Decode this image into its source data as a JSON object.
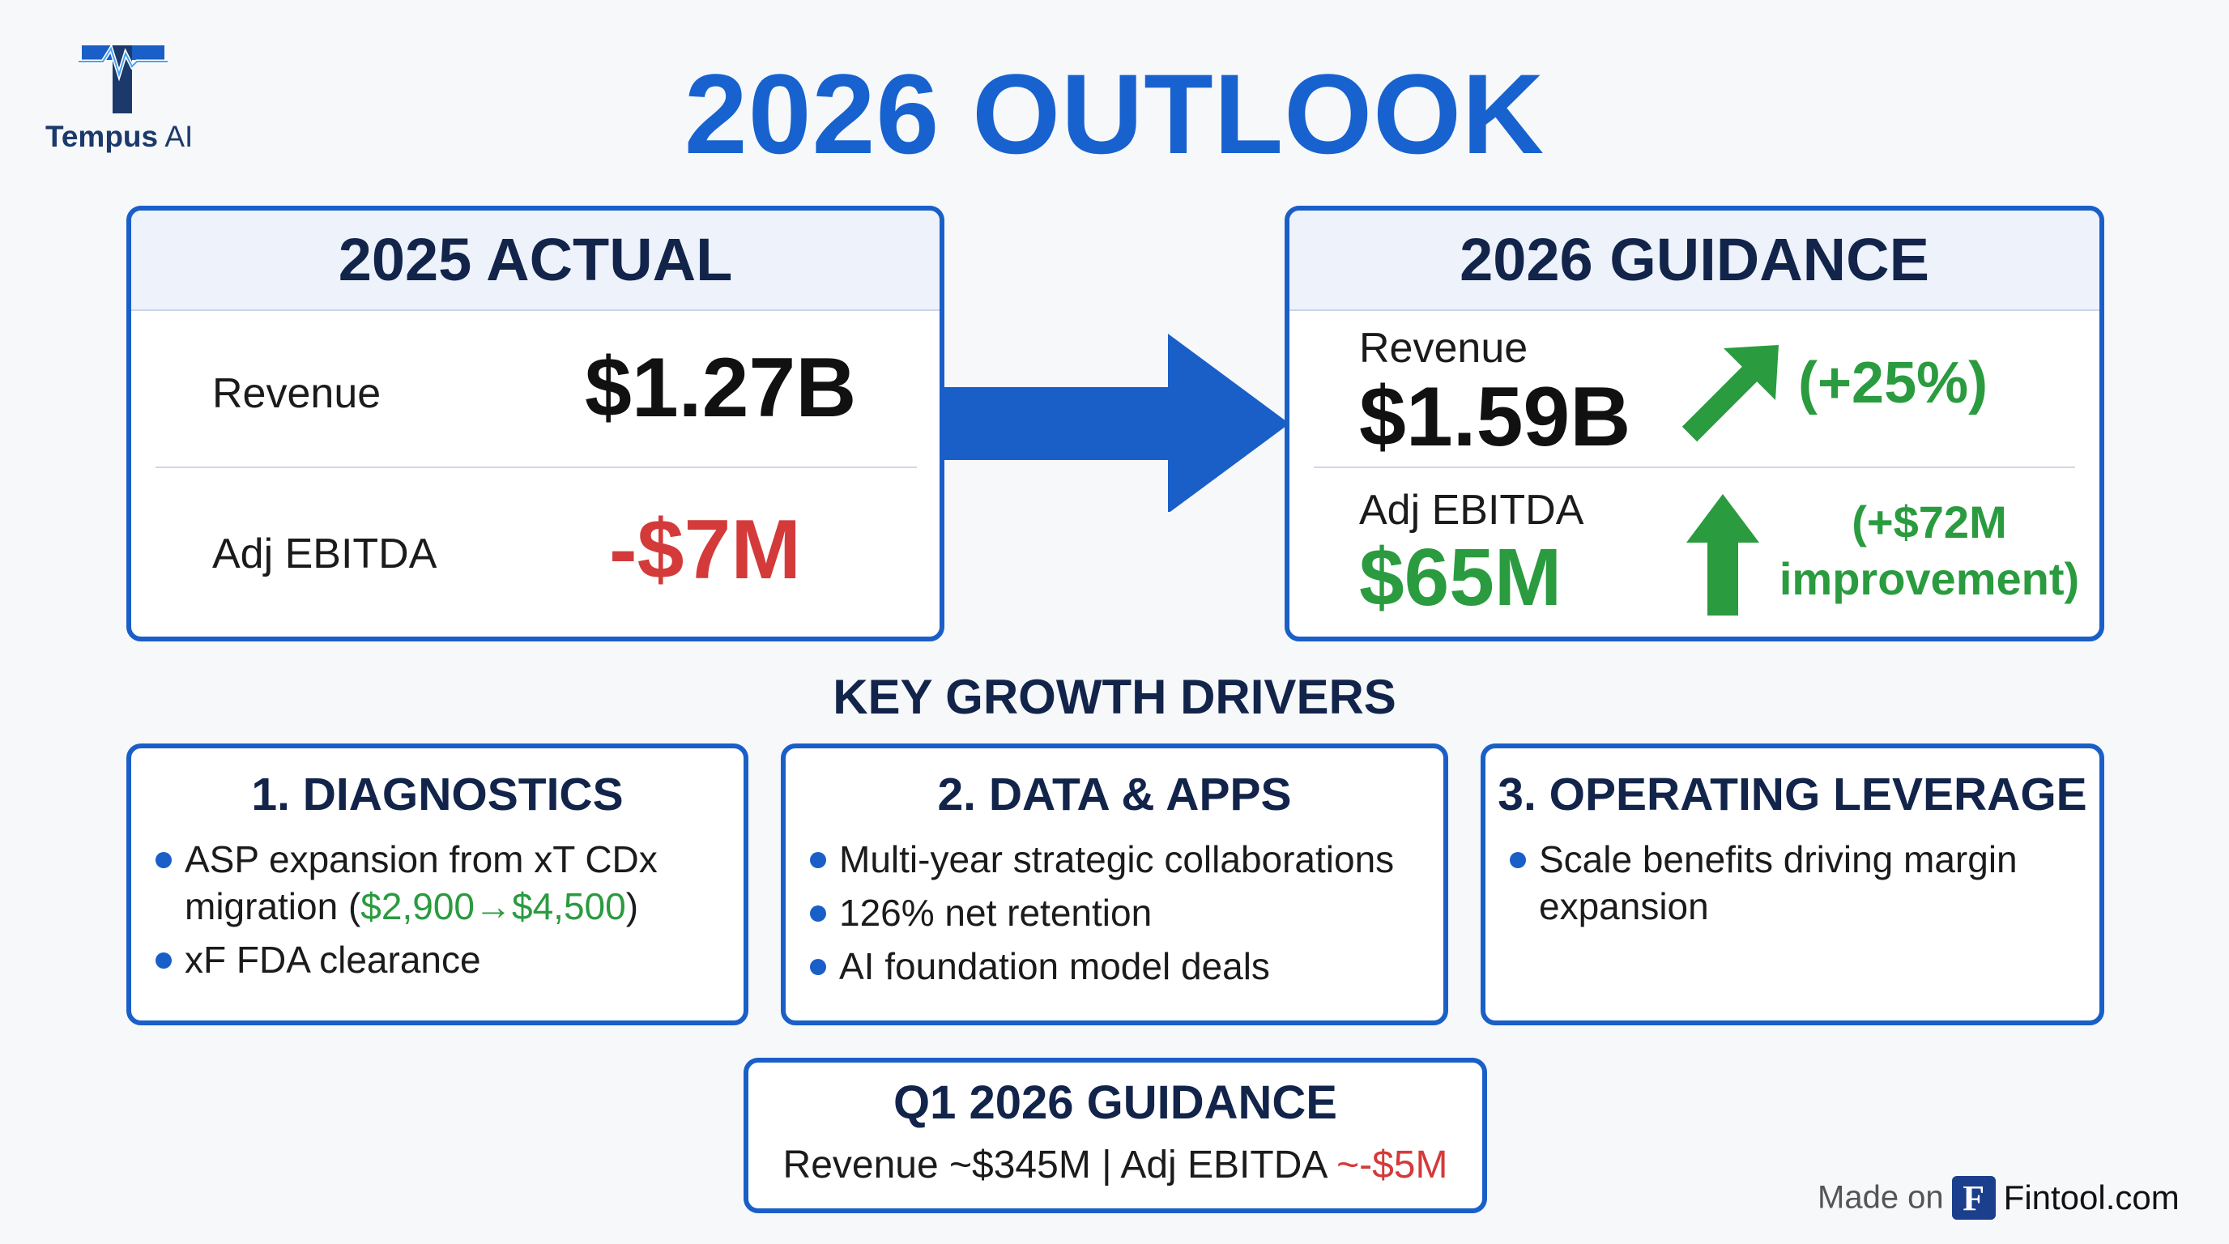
{
  "logo": {
    "name_bold": "Tempus",
    "name_light": " AI",
    "icon": "tempus-t-heartbeat-icon"
  },
  "title": "2026 OUTLOOK",
  "actual": {
    "header": "2025 ACTUAL",
    "revenue_label": "Revenue",
    "revenue_value": "$1.27B",
    "ebitda_label": "Adj EBITDA",
    "ebitda_value": "-$7M"
  },
  "guidance": {
    "header": "2026 GUIDANCE",
    "revenue_label": "Revenue",
    "revenue_value": "$1.59B",
    "revenue_change": "(+25%)",
    "ebitda_label": "Adj EBITDA",
    "ebitda_value": "$65M",
    "ebitda_change_line1": "(+$72M",
    "ebitda_change_line2": "improvement)"
  },
  "drivers": {
    "title": "KEY GROWTH DRIVERS",
    "items": [
      {
        "header": "1. DIAGNOSTICS",
        "bullet1_text": "ASP expansion from xT CDx migration (",
        "bullet1_highlight": "$2,900→$4,500",
        "bullet1_tail": ")",
        "bullet2": "xF FDA clearance"
      },
      {
        "header": "2. DATA & APPS",
        "bullets": [
          "Multi-year strategic collaborations",
          "126% net retention",
          "AI foundation model deals"
        ]
      },
      {
        "header": "3. OPERATING LEVERAGE",
        "bullets": [
          "Scale benefits driving margin expansion"
        ]
      }
    ]
  },
  "q1": {
    "header": "Q1 2026 GUIDANCE",
    "revenue_text": "Revenue ~$345M",
    "separator": " | ",
    "ebitda_text": "Adj EBITDA ",
    "ebitda_value": "~-$5M"
  },
  "footer": {
    "made_on": "Made on",
    "badge": "F",
    "site": "Fintool.com"
  },
  "colors": {
    "primary_blue": "#1a5fc8",
    "green": "#2a9b3f",
    "red": "#d43a3a",
    "navy": "#12244a"
  }
}
